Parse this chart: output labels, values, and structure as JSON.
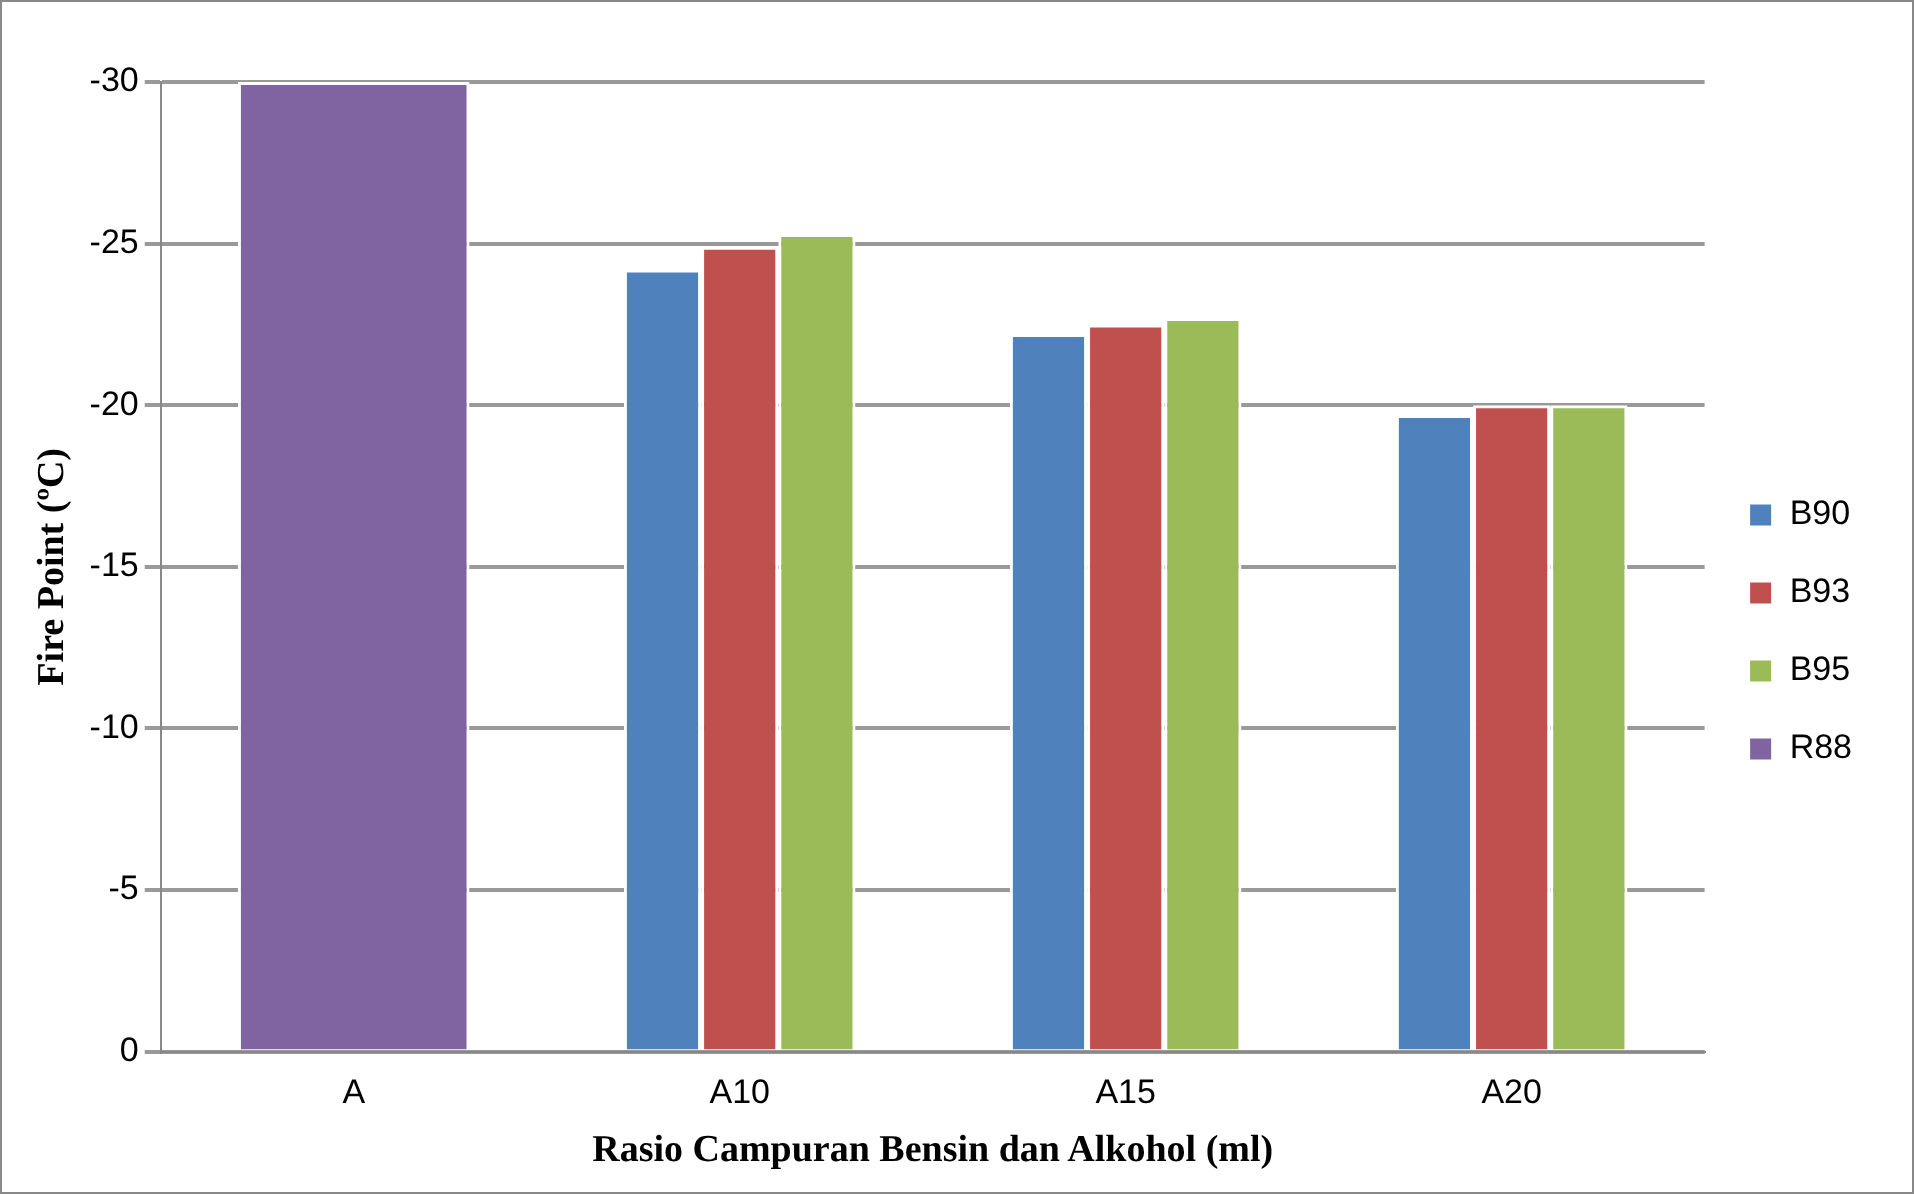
{
  "chart_data": {
    "type": "bar",
    "xlabel": "Rasio Campuran Bensin dan Alkohol (ml)",
    "ylabel": "Fire Point (ºC)",
    "categories": [
      "A",
      "A10",
      "A15",
      "A20"
    ],
    "series": [
      {
        "name": "B90",
        "color": "#4f81bd",
        "values": [
          null,
          -24.2,
          -22.2,
          -19.7
        ]
      },
      {
        "name": "B93",
        "color": "#c0504d",
        "values": [
          null,
          -24.9,
          -22.5,
          -20.0
        ]
      },
      {
        "name": "B95",
        "color": "#9bbb59",
        "values": [
          null,
          -25.3,
          -22.7,
          -20.0
        ]
      },
      {
        "name": "R88",
        "color": "#8064a2",
        "values": [
          -30,
          null,
          null,
          null
        ]
      }
    ],
    "ylim": [
      0,
      -30
    ],
    "yticks": [
      0,
      -5,
      -10,
      -15,
      -20,
      -25,
      -30
    ],
    "grid": "y",
    "legend": "right"
  }
}
